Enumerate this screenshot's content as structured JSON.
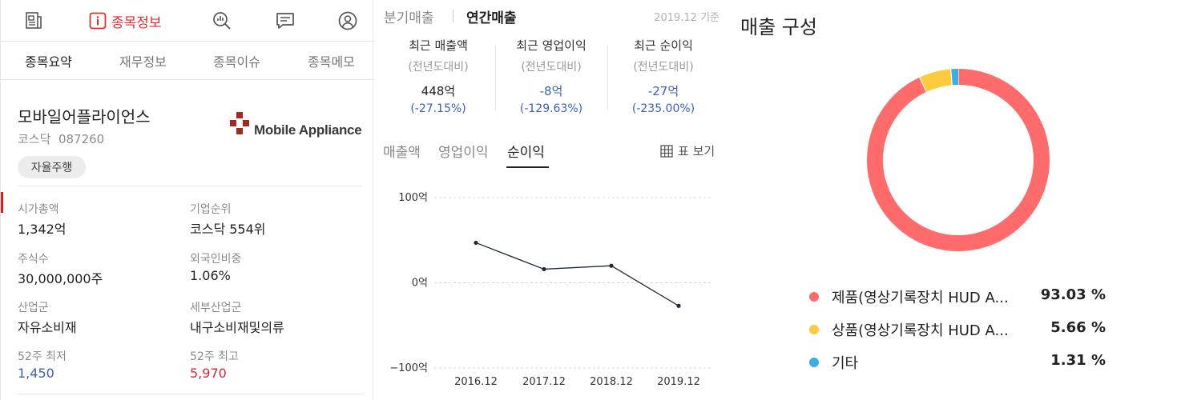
{
  "nav": {
    "info_label": "종목정보",
    "icons": [
      "news-icon",
      "info-icon",
      "analysis-icon",
      "chat-icon",
      "profile-icon"
    ]
  },
  "tabs": [
    "종목요약",
    "재무정보",
    "종목이슈",
    "종목메모"
  ],
  "company": {
    "name": "모바일어플라이언스",
    "market": "코스닥",
    "code": "087260",
    "badge": "자율주행",
    "logo_text": "Mobile Appliance"
  },
  "stats": [
    {
      "label": "시가총액",
      "value": "1,342억"
    },
    {
      "label": "기업순위",
      "value": "코스닥 554위"
    },
    {
      "label": "주식수",
      "value": "30,000,000주"
    },
    {
      "label": "외국인비중",
      "value": "1.06%"
    },
    {
      "label": "산업군",
      "value": "자유소비재"
    },
    {
      "label": "세부산업군",
      "value": "내구소비재및의류"
    },
    {
      "label": "52주 최저",
      "value": "1,450"
    },
    {
      "label": "52주 최고",
      "value": "5,970"
    }
  ],
  "colors": {
    "accent": "#d71f1f",
    "low": "#3b5fc0",
    "high": "#d7282f"
  },
  "sales": {
    "period_quarter": "분기매출",
    "period_annual": "연간매출",
    "as_of": "2019.12 기준",
    "metrics": [
      {
        "title": "최근 매출액",
        "sub": "(전년도대비)",
        "value": "448억",
        "pct": "(-27.15%)"
      },
      {
        "title": "최근 영업이익",
        "sub": "(전년도대비)",
        "value": "-8억",
        "pct": "(-129.63%)"
      },
      {
        "title": "최근 순이익",
        "sub": "(전년도대비)",
        "value": "-27억",
        "pct": "(-235.00%)"
      }
    ],
    "chart_tabs": [
      "매출액",
      "영업이익",
      "순이익"
    ],
    "table_view": "표 보기"
  },
  "chart_data": {
    "type": "line",
    "categories": [
      "2016.12",
      "2017.12",
      "2018.12",
      "2019.12"
    ],
    "series": [
      {
        "values": [
          47,
          16,
          20,
          -27
        ]
      }
    ],
    "yticks": [
      "100억",
      "0억",
      "−100억"
    ],
    "ylim": [
      -100,
      100
    ],
    "grid": "horizontal dashed"
  },
  "composition": {
    "title": "매출 구성",
    "items": [
      {
        "name": "제품(영상기록장치 HUD A...",
        "pct": "93.03 %",
        "value": 93.03,
        "color": "#ff6b6b"
      },
      {
        "name": "상품(영상기록장치 HUD A...",
        "pct": "5.66 %",
        "value": 5.66,
        "color": "#ffcb3d"
      },
      {
        "name": "기타",
        "pct": "1.31 %",
        "value": 1.31,
        "color": "#3ab0e2"
      }
    ]
  }
}
